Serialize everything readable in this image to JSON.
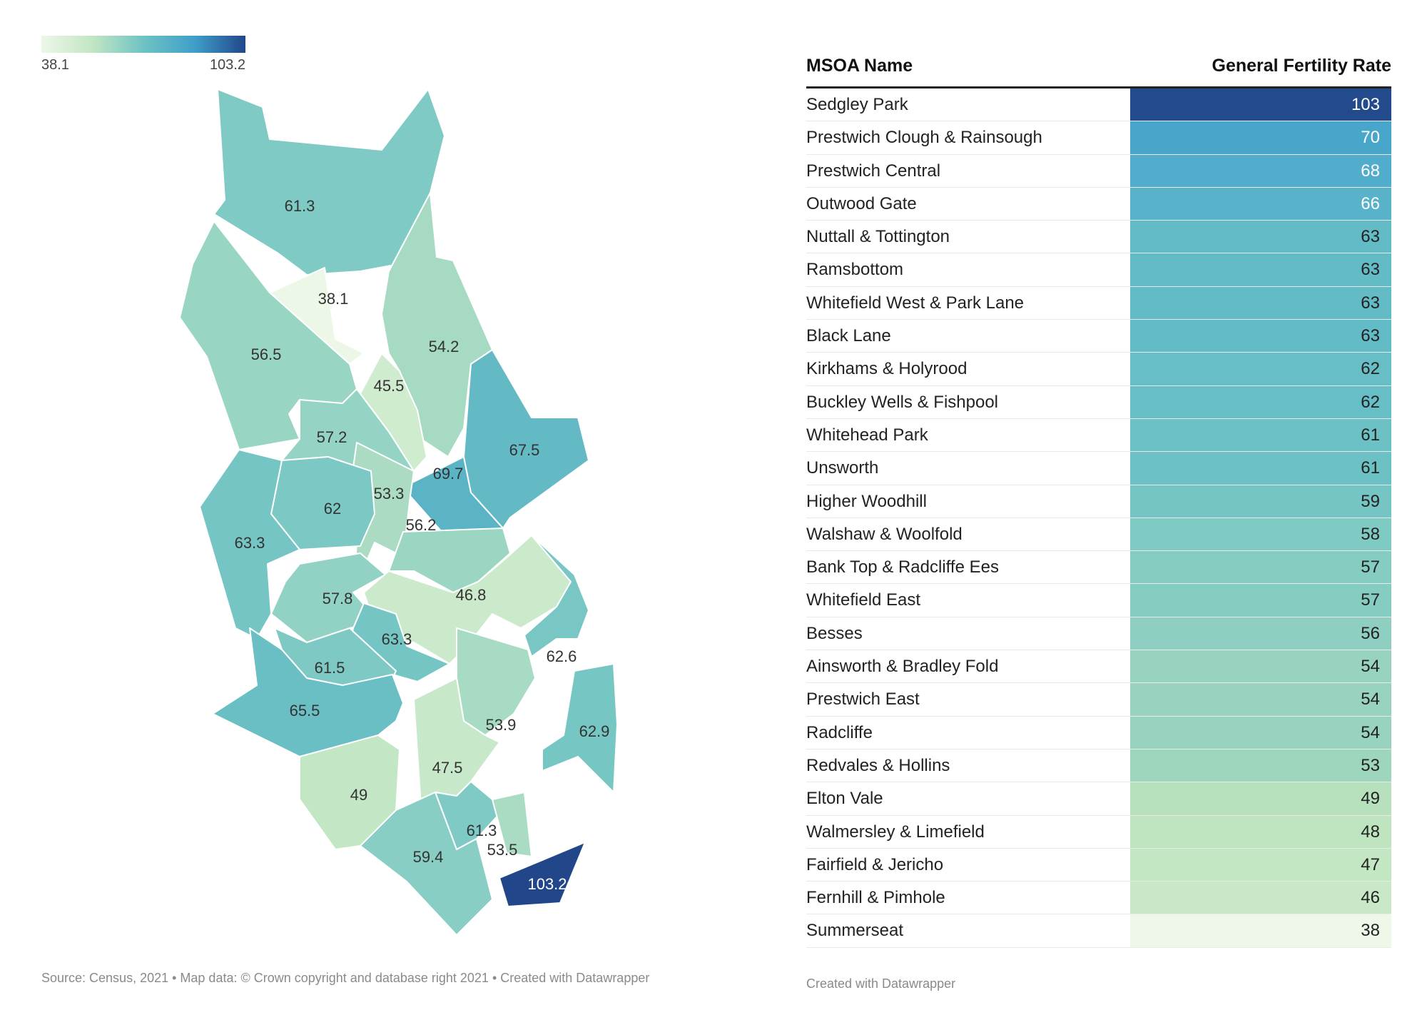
{
  "legend": {
    "min_label": "38.1",
    "max_label": "103.2",
    "min": 38.1,
    "max": 103.2
  },
  "map": {
    "source_text": "Source: Census, 2021 • Map data: © Crown copyright and database right 2021 • Created with Datawrapper",
    "region_labels": [
      "61.3",
      "38.1",
      "56.5",
      "54.2",
      "45.5",
      "57.2",
      "69.7",
      "67.5",
      "53.3",
      "62",
      "63.3",
      "56.2",
      "57.8",
      "46.8",
      "63.3",
      "61.5",
      "62.6",
      "65.5",
      "53.9",
      "62.9",
      "47.5",
      "49",
      "61.3",
      "53.5",
      "59.4",
      "103.2"
    ]
  },
  "table": {
    "col_name_header": "MSOA Name",
    "col_value_header": "General Fertility Rate",
    "credit": "Created with Datawrapper",
    "rows": [
      {
        "name": "Sedgley Park",
        "value": "103",
        "color": "#234a8c"
      },
      {
        "name": "Prestwich Clough & Rainsough",
        "value": "70",
        "color": "#49a6cb"
      },
      {
        "name": "Prestwich Central",
        "value": "68",
        "color": "#51adcb"
      },
      {
        "name": "Outwood Gate",
        "value": "66",
        "color": "#58b2c9"
      },
      {
        "name": "Nuttall & Tottington",
        "value": "63",
        "color": "#63bbc6"
      },
      {
        "name": "Ramsbottom",
        "value": "63",
        "color": "#63bbc6"
      },
      {
        "name": "Whitefield West & Park Lane",
        "value": "63",
        "color": "#63bbc6"
      },
      {
        "name": "Black Lane",
        "value": "63",
        "color": "#63bbc6"
      },
      {
        "name": "Kirkhams & Holyrood",
        "value": "62",
        "color": "#68bec6"
      },
      {
        "name": "Buckley Wells & Fishpool",
        "value": "62",
        "color": "#68bec6"
      },
      {
        "name": "Whitehead Park",
        "value": "61",
        "color": "#6cc1c5"
      },
      {
        "name": "Unsworth",
        "value": "61",
        "color": "#6cc1c5"
      },
      {
        "name": "Higher Woodhill",
        "value": "59",
        "color": "#74c5c3"
      },
      {
        "name": "Walshaw & Woolfold",
        "value": "58",
        "color": "#7fcac2"
      },
      {
        "name": "Bank Top & Radcliffe Ees",
        "value": "57",
        "color": "#85ccc1"
      },
      {
        "name": "Whitefield East",
        "value": "57",
        "color": "#85ccc1"
      },
      {
        "name": "Besses",
        "value": "56",
        "color": "#8ecfc1"
      },
      {
        "name": "Ainsworth & Bradley Fold",
        "value": "54",
        "color": "#97d3be"
      },
      {
        "name": "Prestwich East",
        "value": "54",
        "color": "#97d3be"
      },
      {
        "name": "Radcliffe",
        "value": "54",
        "color": "#97d3be"
      },
      {
        "name": "Redvales & Hollins",
        "value": "53",
        "color": "#9dd6bd"
      },
      {
        "name": "Elton Vale",
        "value": "49",
        "color": "#b7e1bd"
      },
      {
        "name": "Walmersley & Limefield",
        "value": "48",
        "color": "#bee4c0"
      },
      {
        "name": "Fairfield & Jericho",
        "value": "47",
        "color": "#c3e6c3"
      },
      {
        "name": "Fernhill & Pimhole",
        "value": "46",
        "color": "#c8e8c7"
      },
      {
        "name": "Summerseat",
        "value": "38",
        "color": "#eef7e8"
      }
    ]
  }
}
